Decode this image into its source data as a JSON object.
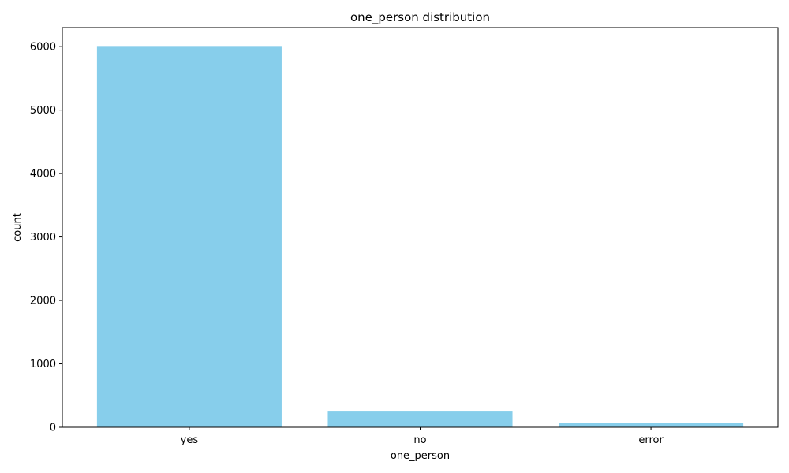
{
  "chart_data": {
    "type": "bar",
    "title": "one_person distribution",
    "xlabel": "one_person",
    "ylabel": "count",
    "categories": [
      "yes",
      "no",
      "error"
    ],
    "values": [
      6010,
      260,
      70
    ],
    "ylim": [
      0,
      6300
    ],
    "yticks": [
      0,
      1000,
      2000,
      3000,
      4000,
      5000,
      6000
    ],
    "bar_color": "#87CEEB",
    "grid": false,
    "legend": "none"
  }
}
